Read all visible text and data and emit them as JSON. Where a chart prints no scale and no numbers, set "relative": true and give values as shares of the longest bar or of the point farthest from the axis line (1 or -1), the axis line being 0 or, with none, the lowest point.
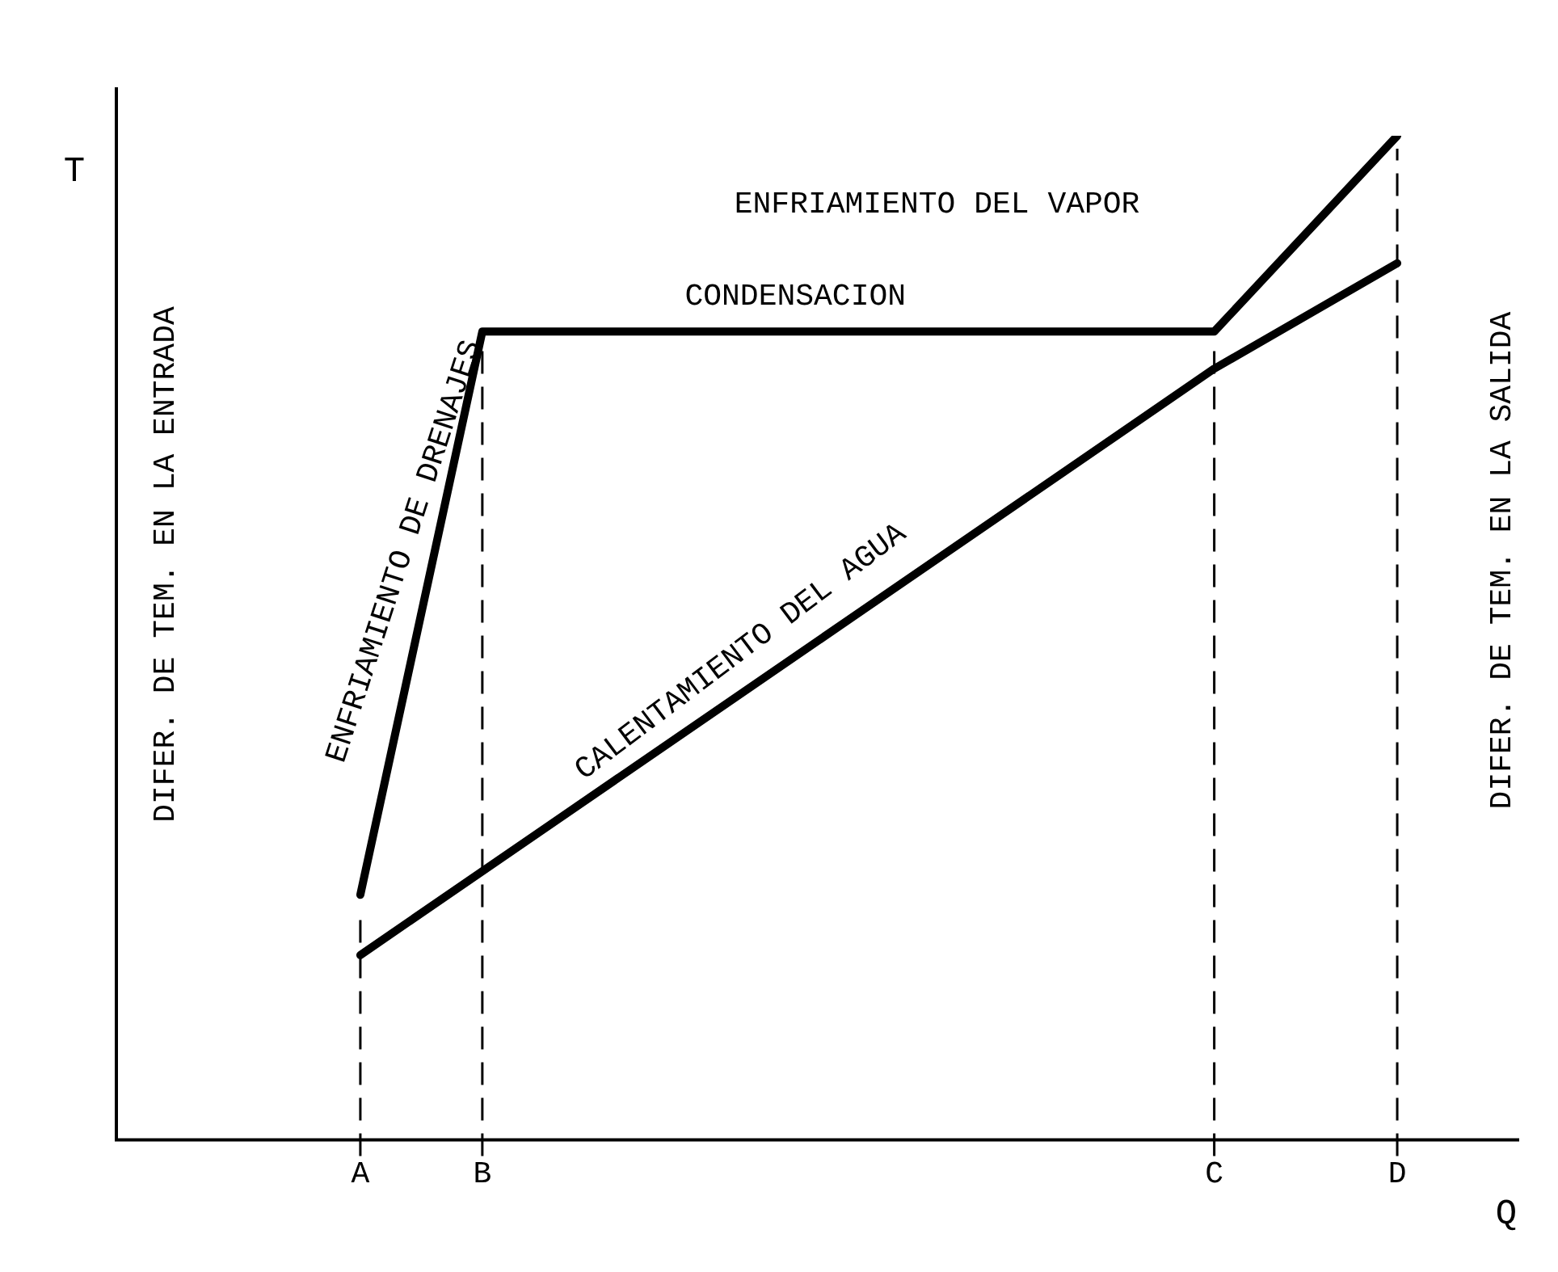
{
  "chart_data": {
    "type": "line",
    "relative": true,
    "xlabel": "Q",
    "ylabel": "T",
    "categories": [
      null,
      null,
      null,
      null,
      "A",
      null,
      "B",
      null,
      null,
      null,
      null,
      null,
      null,
      null,
      null,
      null,
      null,
      null,
      "C",
      null,
      null,
      "D",
      null,
      null
    ],
    "series": [
      {
        "color": "#000000",
        "values": [
          null,
          null,
          null,
          null,
          0.244,
          null,
          0.805,
          null,
          null,
          null,
          null,
          null,
          null,
          null,
          null,
          null,
          null,
          null,
          0.805,
          null,
          null,
          1.0,
          null,
          null
        ]
      },
      {
        "color": "#000000",
        "values": [
          null,
          null,
          null,
          null,
          0.184,
          null,
          null,
          null,
          null,
          null,
          null,
          null,
          null,
          null,
          null,
          null,
          null,
          null,
          0.768,
          null,
          null,
          0.873,
          null,
          null
        ]
      }
    ],
    "ref_lines": [
      {
        "axis": "x",
        "value": "A",
        "line_style": "dashed"
      },
      {
        "axis": "x",
        "value": "B",
        "line_style": "dashed"
      },
      {
        "axis": "x",
        "value": "C",
        "line_style": "dashed"
      },
      {
        "axis": "x",
        "value": "D",
        "line_style": "dashed"
      }
    ],
    "annotations": [
      "ENFRIAMIENTO DEL VAPOR",
      "CONDENSACION",
      "ENFRIAMIENTO DE DRENAJES",
      "CALENTAMIENTO DEL AGUA",
      "DIFER. DE TEM. EN LA ENTRADA",
      "DIFER. DE TEM. EN LA SALIDA"
    ],
    "grid": false,
    "legend": false,
    "marker": "none",
    "line_style": "solid"
  }
}
